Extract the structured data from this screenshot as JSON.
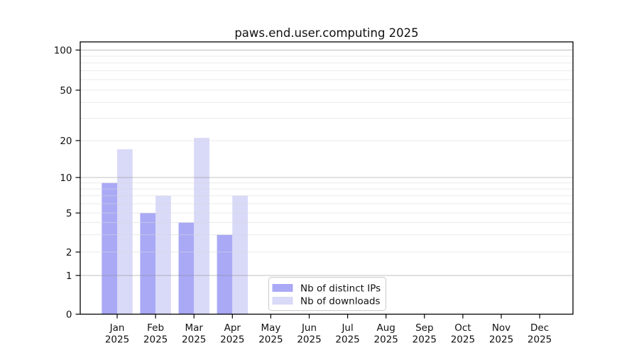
{
  "figure": {
    "background": "#ffffff"
  },
  "chart_data": {
    "type": "bar",
    "title": "paws.end.user.computing 2025",
    "x_categories": [
      "Jan",
      "Feb",
      "Mar",
      "Apr",
      "May",
      "Jun",
      "Jul",
      "Aug",
      "Sep",
      "Oct",
      "Nov",
      "Dec"
    ],
    "x_year_label": "2025",
    "series": [
      {
        "name": "Nb of distinct IPs",
        "color": "#a9a9f6",
        "values": [
          9,
          5,
          4,
          3,
          0,
          0,
          0,
          0,
          0,
          0,
          0,
          0
        ]
      },
      {
        "name": "Nb of downloads",
        "color": "#d9d9f8",
        "values": [
          17,
          7,
          21,
          7,
          0,
          0,
          0,
          0,
          0,
          0,
          0,
          0
        ]
      }
    ],
    "y_axis": {
      "scale": "symlog",
      "range": [
        0,
        100
      ],
      "ticks": [
        0,
        1,
        2,
        5,
        10,
        20,
        50,
        100
      ],
      "major_gridlines": [
        1,
        10,
        100
      ],
      "minor_gridlines": [
        2,
        3,
        4,
        5,
        6,
        7,
        8,
        9,
        20,
        30,
        40,
        50,
        60,
        70,
        80,
        90
      ],
      "grid": "on"
    },
    "legend": {
      "position": "bottom-center",
      "border_color": "#cccccc",
      "items": [
        "Nb of distinct IPs",
        "Nb of downloads"
      ]
    }
  }
}
